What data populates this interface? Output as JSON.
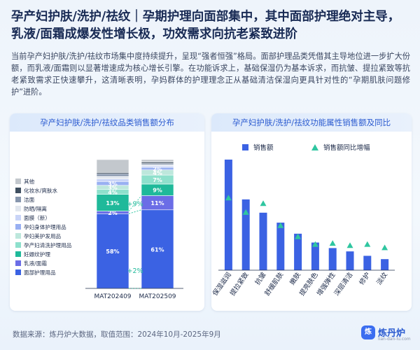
{
  "header": {
    "title": "孕产妇护肤/洗护/祛纹｜孕期护理向面部集中，其中面部护理绝对主导，乳液/面霜成爆发性增长极，功效需求向抗老紧致进阶",
    "paragraph": "当前孕产妇护肤/洗护/祛纹市场集中度持续提升，呈现“强者恒强”格局。面部护理品类凭借其主导地位进一步扩大份额，而乳液/面霜则以显著增速成为核心增长引擎。在功能诉求上，基础保湿仍为基本诉求，而抗皱、提拉紧致等抗老紧致需求正快速攀升，这清晰表明，孕妈群体的护理理念正从基础清洁保湿向更具针对性的“孕期肌肤问题修护”进阶。"
  },
  "footer": {
    "source": "数据来源：炼丹炉大数据，取值范围：2024年10月-2025年9月"
  },
  "brand": {
    "logo_text": "炼丹炉",
    "logo_sub": "lian-dan-lu.com",
    "badge": "炼",
    "accent": "#3b6df0"
  },
  "chart_data": [
    {
      "type": "bar",
      "stacked": true,
      "title": "孕产妇护肤/洗护/祛纹品类销售额分布",
      "categories": [
        "MAT202409",
        "MAT202509"
      ],
      "series": [
        {
          "name": "面部护理用品",
          "color": "#3b62e3",
          "values": [
            58,
            61
          ],
          "labels": [
            "58%",
            "61%"
          ]
        },
        {
          "name": "乳液/面霜",
          "color": "#6b6de6",
          "values": [
            2,
            11
          ],
          "labels": [
            "2%",
            "11%"
          ]
        },
        {
          "name": "妊娠纹护理",
          "color": "#1fb99a",
          "values": [
            13,
            9
          ],
          "labels": [
            "13%",
            "9%"
          ]
        },
        {
          "name": "孕产妇清洗护理用品",
          "color": "#8ee0cc",
          "values": [
            4,
            7
          ],
          "labels": [
            "4%",
            "7%"
          ]
        },
        {
          "name": "孕妇美护发用品",
          "color": "#bde7dc",
          "values": [
            3,
            4
          ],
          "labels": [
            "3%",
            "4%"
          ]
        },
        {
          "name": "孕妇身体护理用品",
          "color": "#99b0f2",
          "values": [
            3,
            2
          ],
          "labels": [
            "3%",
            "2%"
          ]
        },
        {
          "name": "面膜（新）",
          "color": "#c9d4f7",
          "values": [
            2,
            1
          ],
          "labels": [
            "",
            ""
          ]
        },
        {
          "name": "防晒/隔离",
          "color": "#e1e6ee",
          "values": [
            2,
            1
          ],
          "labels": [
            "",
            ""
          ]
        },
        {
          "name": "洁面",
          "color": "#8796ad",
          "values": [
            2,
            1
          ],
          "labels": [
            "",
            ""
          ]
        },
        {
          "name": "化妆水/爽肤水",
          "color": "#3f4f5f",
          "values": [
            1,
            1
          ],
          "labels": [
            "",
            ""
          ]
        },
        {
          "name": "其他",
          "color": "#c3c8cd",
          "values": [
            10,
            2
          ],
          "labels": [
            "",
            ""
          ]
        }
      ],
      "annotations": [
        {
          "text": "+2%",
          "between": "面部护理用品"
        },
        {
          "text": "+9%",
          "between": "乳液/面霜"
        }
      ],
      "legend_position": "left"
    },
    {
      "type": "bar+scatter",
      "title": "孕产妇护肤/洗护/祛纹功能属性销售额及同比",
      "categories": [
        "保湿滋润",
        "提拉紧致",
        "抗皱",
        "舒缓肌肤",
        "嫩肤",
        "提亮肤色",
        "增强弹性",
        "深层清洁",
        "修护",
        "淡纹"
      ],
      "legend": [
        "销售额",
        "销售额同比增幅"
      ],
      "bar_color": "#3b62e3",
      "marker_color": "#2fc6a0",
      "bar_values": [
        100,
        64,
        52,
        43,
        33,
        25,
        20,
        17,
        13,
        10
      ],
      "growth_values": [
        65,
        52,
        60,
        40,
        30,
        23,
        24,
        22,
        23,
        20
      ],
      "legend_position": "top"
    }
  ]
}
